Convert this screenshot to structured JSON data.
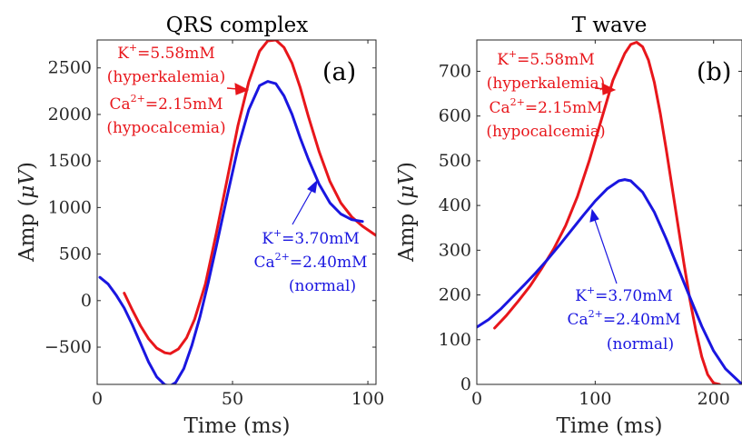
{
  "chart_data": [
    {
      "type": "line",
      "title": "QRS complex",
      "panel_label": "(a)",
      "xlabel": "Time (ms)",
      "ylabel_prefix": "Amp (",
      "ylabel_unit": "μV",
      "ylabel_suffix": ")",
      "xlim": [
        0,
        103
      ],
      "ylim": [
        -900,
        2800
      ],
      "xticks": [
        0,
        50,
        100
      ],
      "yticks": [
        -500,
        0,
        500,
        1000,
        1500,
        2000,
        2500
      ],
      "ytick_labels": [
        "−500",
        "0",
        "500",
        "1000",
        "1500",
        "2000",
        "2500"
      ],
      "series": [
        {
          "id": "hyper",
          "color": "#e8161b",
          "x": [
            10,
            13,
            16,
            19,
            22,
            25,
            27,
            30,
            33,
            36,
            40,
            44,
            48,
            52,
            56,
            60,
            63,
            66,
            69,
            72,
            75,
            78,
            82,
            86,
            90,
            94,
            98,
            103
          ],
          "y": [
            80,
            -100,
            -270,
            -410,
            -510,
            -560,
            -570,
            -520,
            -400,
            -200,
            180,
            720,
            1300,
            1880,
            2350,
            2680,
            2790,
            2800,
            2720,
            2550,
            2290,
            1980,
            1600,
            1280,
            1050,
            900,
            800,
            700
          ]
        },
        {
          "id": "normal",
          "color": "#1a16e0",
          "x": [
            1,
            4,
            7,
            10,
            13,
            16,
            19,
            22,
            25,
            27,
            29,
            32,
            35,
            38,
            41,
            44,
            48,
            52,
            56,
            60,
            63,
            66,
            69,
            72,
            75,
            78,
            82,
            86,
            90,
            94,
            98
          ],
          "y": [
            250,
            180,
            60,
            -80,
            -260,
            -460,
            -660,
            -820,
            -905,
            -915,
            -880,
            -730,
            -480,
            -170,
            190,
            580,
            1120,
            1640,
            2050,
            2310,
            2355,
            2330,
            2200,
            2000,
            1750,
            1520,
            1250,
            1050,
            930,
            870,
            850
          ]
        }
      ],
      "annotations": [
        {
          "series": "hyper",
          "lines": [
            "K+=5.58mM",
            "(hyperkalemia)",
            "Ca2+=2.15mM",
            "(hypocalcemia)"
          ]
        },
        {
          "series": "normal",
          "lines": [
            "K+=3.70mM",
            "Ca2+=2.40mM",
            "(normal)"
          ]
        }
      ]
    },
    {
      "type": "line",
      "title": "T wave",
      "panel_label": "(b)",
      "xlabel": "Time (ms)",
      "ylabel_prefix": "Amp (",
      "ylabel_unit": "μV",
      "ylabel_suffix": ")",
      "xlim": [
        0,
        224
      ],
      "ylim": [
        0,
        770
      ],
      "xticks": [
        0,
        100,
        200
      ],
      "yticks": [
        0,
        100,
        200,
        300,
        400,
        500,
        600,
        700
      ],
      "ytick_labels": [
        "0",
        "100",
        "200",
        "300",
        "400",
        "500",
        "600",
        "700"
      ],
      "series": [
        {
          "id": "hyper",
          "color": "#e8161b",
          "x": [
            15,
            25,
            35,
            45,
            55,
            65,
            75,
            85,
            95,
            105,
            115,
            125,
            130,
            135,
            140,
            145,
            150,
            155,
            160,
            165,
            170,
            175,
            180,
            185,
            190,
            195,
            200,
            205
          ],
          "y": [
            126,
            154,
            186,
            220,
            260,
            303,
            355,
            420,
            500,
            590,
            680,
            740,
            760,
            765,
            755,
            725,
            675,
            605,
            525,
            440,
            355,
            270,
            190,
            120,
            62,
            22,
            3,
            0
          ]
        },
        {
          "id": "normal",
          "color": "#1a16e0",
          "x": [
            0,
            10,
            20,
            30,
            40,
            50,
            60,
            70,
            80,
            90,
            100,
            110,
            120,
            125,
            130,
            140,
            150,
            160,
            170,
            180,
            190,
            200,
            210,
            218,
            224
          ],
          "y": [
            128,
            145,
            168,
            195,
            222,
            250,
            280,
            312,
            345,
            378,
            410,
            437,
            455,
            458,
            455,
            430,
            385,
            325,
            260,
            195,
            130,
            75,
            35,
            15,
            0
          ]
        }
      ],
      "annotations": [
        {
          "series": "hyper",
          "lines": [
            "K+=5.58mM",
            "(hyperkalemia)",
            "Ca2+=2.15mM",
            "(hypocalcemia)"
          ]
        },
        {
          "series": "normal",
          "lines": [
            "K+=3.70mM",
            "Ca2+=2.40mM",
            "(normal)"
          ]
        }
      ]
    }
  ]
}
